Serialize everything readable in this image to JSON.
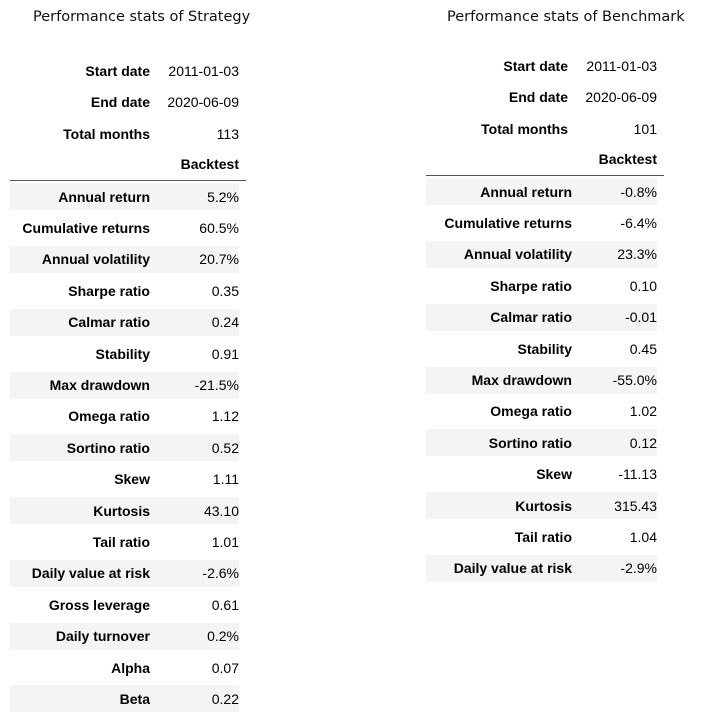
{
  "strategy": {
    "title": "Performance stats of Strategy",
    "meta": [
      {
        "label": "Start date",
        "value": "2011-01-03"
      },
      {
        "label": "End date",
        "value": "2020-06-09"
      },
      {
        "label": "Total months",
        "value": "113"
      }
    ],
    "column_header": "Backtest",
    "rows": [
      {
        "label": "Annual return",
        "value": "5.2%"
      },
      {
        "label": "Cumulative returns",
        "value": "60.5%"
      },
      {
        "label": "Annual volatility",
        "value": "20.7%"
      },
      {
        "label": "Sharpe ratio",
        "value": "0.35"
      },
      {
        "label": "Calmar ratio",
        "value": "0.24"
      },
      {
        "label": "Stability",
        "value": "0.91"
      },
      {
        "label": "Max drawdown",
        "value": "-21.5%"
      },
      {
        "label": "Omega ratio",
        "value": "1.12"
      },
      {
        "label": "Sortino ratio",
        "value": "0.52"
      },
      {
        "label": "Skew",
        "value": "1.11"
      },
      {
        "label": "Kurtosis",
        "value": "43.10"
      },
      {
        "label": "Tail ratio",
        "value": "1.01"
      },
      {
        "label": "Daily value at risk",
        "value": "-2.6%"
      },
      {
        "label": "Gross leverage",
        "value": "0.61"
      },
      {
        "label": "Daily turnover",
        "value": "0.2%"
      },
      {
        "label": "Alpha",
        "value": "0.07"
      },
      {
        "label": "Beta",
        "value": "0.22"
      }
    ]
  },
  "benchmark": {
    "title": "Performance stats of Benchmark",
    "meta": [
      {
        "label": "Start date",
        "value": "2011-01-03"
      },
      {
        "label": "End date",
        "value": "2020-06-09"
      },
      {
        "label": "Total months",
        "value": "101"
      }
    ],
    "column_header": "Backtest",
    "rows": [
      {
        "label": "Annual return",
        "value": "-0.8%"
      },
      {
        "label": "Cumulative returns",
        "value": "-6.4%"
      },
      {
        "label": "Annual volatility",
        "value": "23.3%"
      },
      {
        "label": "Sharpe ratio",
        "value": "0.10"
      },
      {
        "label": "Calmar ratio",
        "value": "-0.01"
      },
      {
        "label": "Stability",
        "value": "0.45"
      },
      {
        "label": "Max drawdown",
        "value": "-55.0%"
      },
      {
        "label": "Omega ratio",
        "value": "1.02"
      },
      {
        "label": "Sortino ratio",
        "value": "0.12"
      },
      {
        "label": "Skew",
        "value": "-11.13"
      },
      {
        "label": "Kurtosis",
        "value": "315.43"
      },
      {
        "label": "Tail ratio",
        "value": "1.04"
      },
      {
        "label": "Daily value at risk",
        "value": "-2.9%"
      }
    ]
  }
}
